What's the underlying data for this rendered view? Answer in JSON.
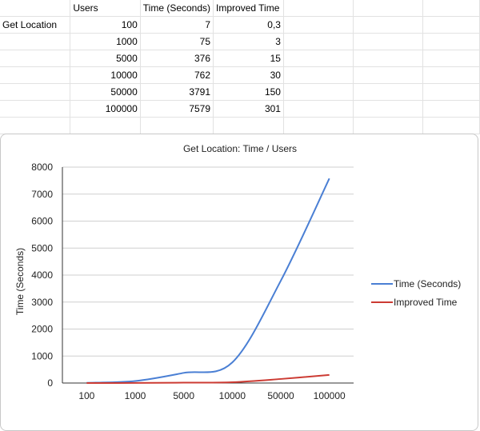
{
  "sheet": {
    "headers": [
      "",
      "Users",
      "Time (Seconds)",
      "Improved Time",
      "",
      "",
      ""
    ],
    "row_label": "Get Location",
    "rows": [
      [
        "100",
        "7",
        "0,3"
      ],
      [
        "1000",
        "75",
        "3"
      ],
      [
        "5000",
        "376",
        "15"
      ],
      [
        "10000",
        "762",
        "30"
      ],
      [
        "50000",
        "3791",
        "150"
      ],
      [
        "100000",
        "7579",
        "301"
      ]
    ]
  },
  "chart_data": {
    "type": "line",
    "title": "Get Location: Time / Users",
    "xlabel": "",
    "ylabel": "Time (Seconds)",
    "categories": [
      "100",
      "1000",
      "5000",
      "10000",
      "50000",
      "100000"
    ],
    "series": [
      {
        "name": "Time (Seconds)",
        "values": [
          7,
          75,
          376,
          762,
          3791,
          7579
        ],
        "color": "#4a7fd4"
      },
      {
        "name": "Improved Time",
        "values": [
          0.3,
          3,
          15,
          30,
          150,
          301
        ],
        "color": "#cc3b33"
      }
    ],
    "yticks": [
      0,
      1000,
      2000,
      3000,
      4000,
      5000,
      6000,
      7000,
      8000
    ],
    "ylim": [
      0,
      8000
    ],
    "grid": true,
    "legend": "right"
  }
}
